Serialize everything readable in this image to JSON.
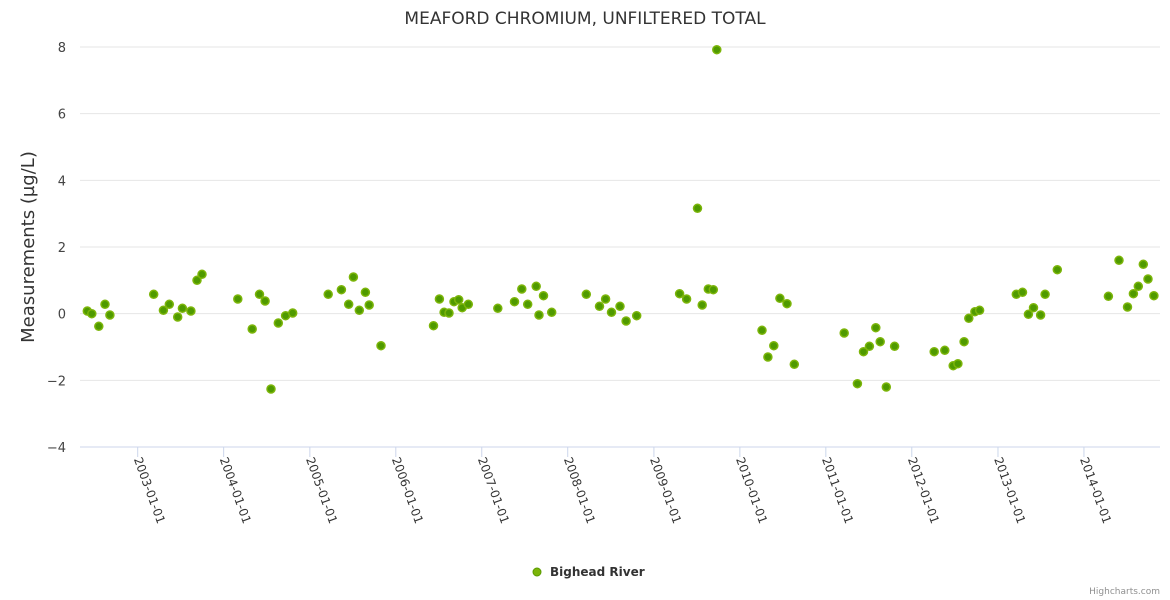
{
  "chart_data": {
    "type": "scatter",
    "title": "MEAFORD CHROMIUM, UNFILTERED TOTAL",
    "xlabel": "",
    "ylabel": "Measurements (µg/L)",
    "ylim": [
      -4,
      8
    ],
    "yticks": [
      "−4",
      "−2",
      "0",
      "2",
      "4",
      "6",
      "8"
    ],
    "ytick_values": [
      -4,
      -2,
      0,
      2,
      4,
      6,
      8
    ],
    "xlim": [
      "2002-05-01",
      "2014-11-20"
    ],
    "xticks": [
      "2003-01-01",
      "2004-01-01",
      "2005-01-01",
      "2006-01-01",
      "2007-01-01",
      "2008-01-01",
      "2009-01-01",
      "2010-01-01",
      "2011-01-01",
      "2012-01-01",
      "2013-01-01",
      "2014-01-01"
    ],
    "grid": true,
    "legend_position": "bottom-center",
    "series": [
      {
        "name": "Bighead River",
        "color": "#7cb50a",
        "points": [
          [
            "2002-06-01",
            0.08
          ],
          [
            "2002-06-20",
            0.0
          ],
          [
            "2002-07-20",
            -0.38
          ],
          [
            "2002-08-15",
            0.28
          ],
          [
            "2002-09-05",
            -0.04
          ],
          [
            "2003-03-10",
            0.58
          ],
          [
            "2003-04-20",
            0.1
          ],
          [
            "2003-05-15",
            0.28
          ],
          [
            "2003-06-20",
            -0.1
          ],
          [
            "2003-07-10",
            0.16
          ],
          [
            "2003-08-15",
            0.08
          ],
          [
            "2003-09-10",
            1.0
          ],
          [
            "2003-10-01",
            1.18
          ],
          [
            "2004-03-01",
            0.44
          ],
          [
            "2004-05-01",
            -0.46
          ],
          [
            "2004-06-01",
            0.58
          ],
          [
            "2004-06-25",
            0.38
          ],
          [
            "2004-07-20",
            -2.26
          ],
          [
            "2004-08-20",
            -0.28
          ],
          [
            "2004-09-20",
            -0.06
          ],
          [
            "2004-10-20",
            0.02
          ],
          [
            "2005-03-20",
            0.58
          ],
          [
            "2005-05-15",
            0.72
          ],
          [
            "2005-06-15",
            0.28
          ],
          [
            "2005-07-05",
            1.1
          ],
          [
            "2005-07-30",
            0.1
          ],
          [
            "2005-08-25",
            0.64
          ],
          [
            "2005-09-10",
            0.26
          ],
          [
            "2005-10-30",
            -0.96
          ],
          [
            "2006-06-10",
            -0.36
          ],
          [
            "2006-07-05",
            0.44
          ],
          [
            "2006-07-25",
            0.04
          ],
          [
            "2006-08-15",
            0.02
          ],
          [
            "2006-09-05",
            0.36
          ],
          [
            "2006-09-25",
            0.42
          ],
          [
            "2006-10-10",
            0.18
          ],
          [
            "2006-11-05",
            0.28
          ],
          [
            "2007-03-10",
            0.16
          ],
          [
            "2007-05-20",
            0.36
          ],
          [
            "2007-06-20",
            0.74
          ],
          [
            "2007-07-15",
            0.28
          ],
          [
            "2007-08-20",
            0.82
          ],
          [
            "2007-09-01",
            -0.04
          ],
          [
            "2007-09-20",
            0.54
          ],
          [
            "2007-10-25",
            0.04
          ],
          [
            "2008-03-20",
            0.58
          ],
          [
            "2008-05-15",
            0.22
          ],
          [
            "2008-06-10",
            0.44
          ],
          [
            "2008-07-05",
            0.04
          ],
          [
            "2008-08-10",
            0.22
          ],
          [
            "2008-09-05",
            -0.22
          ],
          [
            "2008-10-20",
            -0.06
          ],
          [
            "2009-04-20",
            0.6
          ],
          [
            "2009-05-20",
            0.44
          ],
          [
            "2009-07-05",
            3.16
          ],
          [
            "2009-07-25",
            0.26
          ],
          [
            "2009-08-20",
            0.74
          ],
          [
            "2009-09-10",
            0.72
          ],
          [
            "2009-09-25",
            7.92
          ],
          [
            "2010-04-05",
            -0.5
          ],
          [
            "2010-04-30",
            -1.3
          ],
          [
            "2010-05-25",
            -0.96
          ],
          [
            "2010-06-20",
            0.46
          ],
          [
            "2010-07-20",
            0.3
          ],
          [
            "2010-08-20",
            -1.52
          ],
          [
            "2011-03-20",
            -0.58
          ],
          [
            "2011-05-15",
            -2.1
          ],
          [
            "2011-06-10",
            -1.14
          ],
          [
            "2011-07-05",
            -0.98
          ],
          [
            "2011-08-01",
            -0.42
          ],
          [
            "2011-08-20",
            -0.84
          ],
          [
            "2011-09-15",
            -2.2
          ],
          [
            "2011-10-20",
            -0.98
          ],
          [
            "2012-04-05",
            -1.14
          ],
          [
            "2012-05-20",
            -1.1
          ],
          [
            "2012-06-25",
            -1.56
          ],
          [
            "2012-07-15",
            -1.5
          ],
          [
            "2012-08-10",
            -0.84
          ],
          [
            "2012-08-30",
            -0.14
          ],
          [
            "2012-09-25",
            0.06
          ],
          [
            "2012-10-15",
            0.1
          ],
          [
            "2013-03-20",
            0.58
          ],
          [
            "2013-04-15",
            0.64
          ],
          [
            "2013-05-10",
            -0.02
          ],
          [
            "2013-06-01",
            0.18
          ],
          [
            "2013-07-01",
            -0.04
          ],
          [
            "2013-07-20",
            0.58
          ],
          [
            "2013-09-10",
            1.32
          ],
          [
            "2014-04-15",
            0.52
          ],
          [
            "2014-05-30",
            1.6
          ],
          [
            "2014-07-05",
            0.2
          ],
          [
            "2014-07-30",
            0.6
          ],
          [
            "2014-08-20",
            0.82
          ],
          [
            "2014-09-10",
            1.48
          ],
          [
            "2014-09-30",
            1.04
          ],
          [
            "2014-10-25",
            0.54
          ]
        ]
      }
    ]
  },
  "credits": "Highcharts.com"
}
